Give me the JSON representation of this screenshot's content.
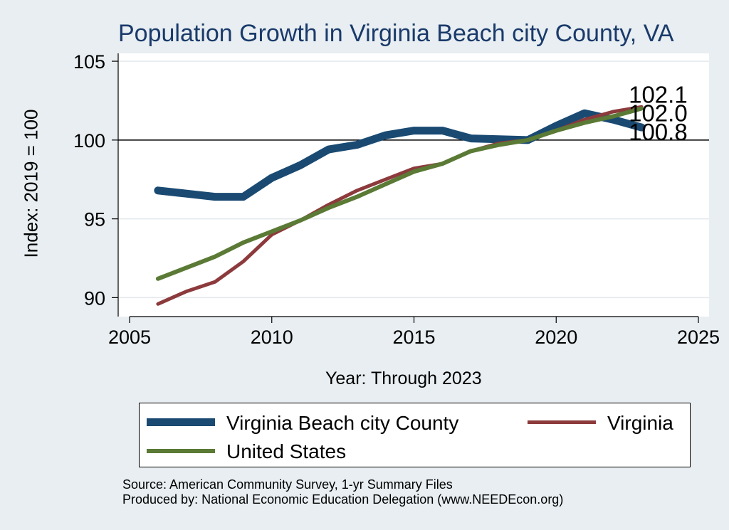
{
  "chart_data": {
    "type": "line",
    "title": "Population Growth in Virginia Beach city County, VA",
    "xlabel": "Year: Through 2023",
    "ylabel": "Index: 2019 = 100",
    "xlim": [
      2005,
      2025
    ],
    "ylim": [
      88.8,
      105.5
    ],
    "xticks": [
      2005,
      2010,
      2015,
      2020,
      2025
    ],
    "yticks": [
      90,
      95,
      100,
      105
    ],
    "reference_line": 100,
    "grid": true,
    "legend_position": "bottom",
    "series": [
      {
        "name": "Virginia Beach city  County",
        "color": "#1a4a72",
        "x": [
          2006,
          2007,
          2008,
          2009,
          2010,
          2011,
          2012,
          2013,
          2014,
          2015,
          2016,
          2017,
          2018,
          2019,
          2020,
          2021,
          2022,
          2023
        ],
        "values": [
          96.8,
          96.6,
          96.4,
          96.4,
          97.6,
          98.4,
          99.4,
          99.7,
          100.3,
          100.6,
          100.6,
          100.1,
          100.05,
          100.0,
          100.9,
          101.7,
          101.3,
          100.8
        ],
        "end_label": "100.8"
      },
      {
        "name": "Virginia",
        "color": "#8c3a3c",
        "x": [
          2006,
          2007,
          2008,
          2009,
          2010,
          2011,
          2012,
          2013,
          2014,
          2015,
          2016,
          2017,
          2018,
          2019,
          2020,
          2021,
          2022,
          2023
        ],
        "values": [
          89.6,
          90.4,
          91.0,
          92.3,
          94.0,
          94.9,
          95.9,
          96.8,
          97.5,
          98.2,
          98.5,
          99.3,
          99.8,
          100.0,
          100.6,
          101.3,
          101.8,
          102.1
        ],
        "end_label": "102.1"
      },
      {
        "name": "United States",
        "color": "#5a7a35",
        "x": [
          2006,
          2007,
          2008,
          2009,
          2010,
          2011,
          2012,
          2013,
          2014,
          2015,
          2016,
          2017,
          2018,
          2019,
          2020,
          2021,
          2022,
          2023
        ],
        "values": [
          91.2,
          91.9,
          92.6,
          93.5,
          94.2,
          94.9,
          95.7,
          96.4,
          97.2,
          98.0,
          98.5,
          99.3,
          99.7,
          100.0,
          100.6,
          101.1,
          101.5,
          102.0
        ],
        "end_label": "102.0"
      }
    ]
  },
  "legend": {
    "items": [
      {
        "label": "Virginia Beach city  County"
      },
      {
        "label": "Virginia"
      },
      {
        "label": "United States"
      }
    ]
  },
  "footer": {
    "source": "Source: American Community Survey, 1-yr Summary Files",
    "producer": "Produced by: National Economic Education Delegation (www.NEEDEcon.org)"
  }
}
